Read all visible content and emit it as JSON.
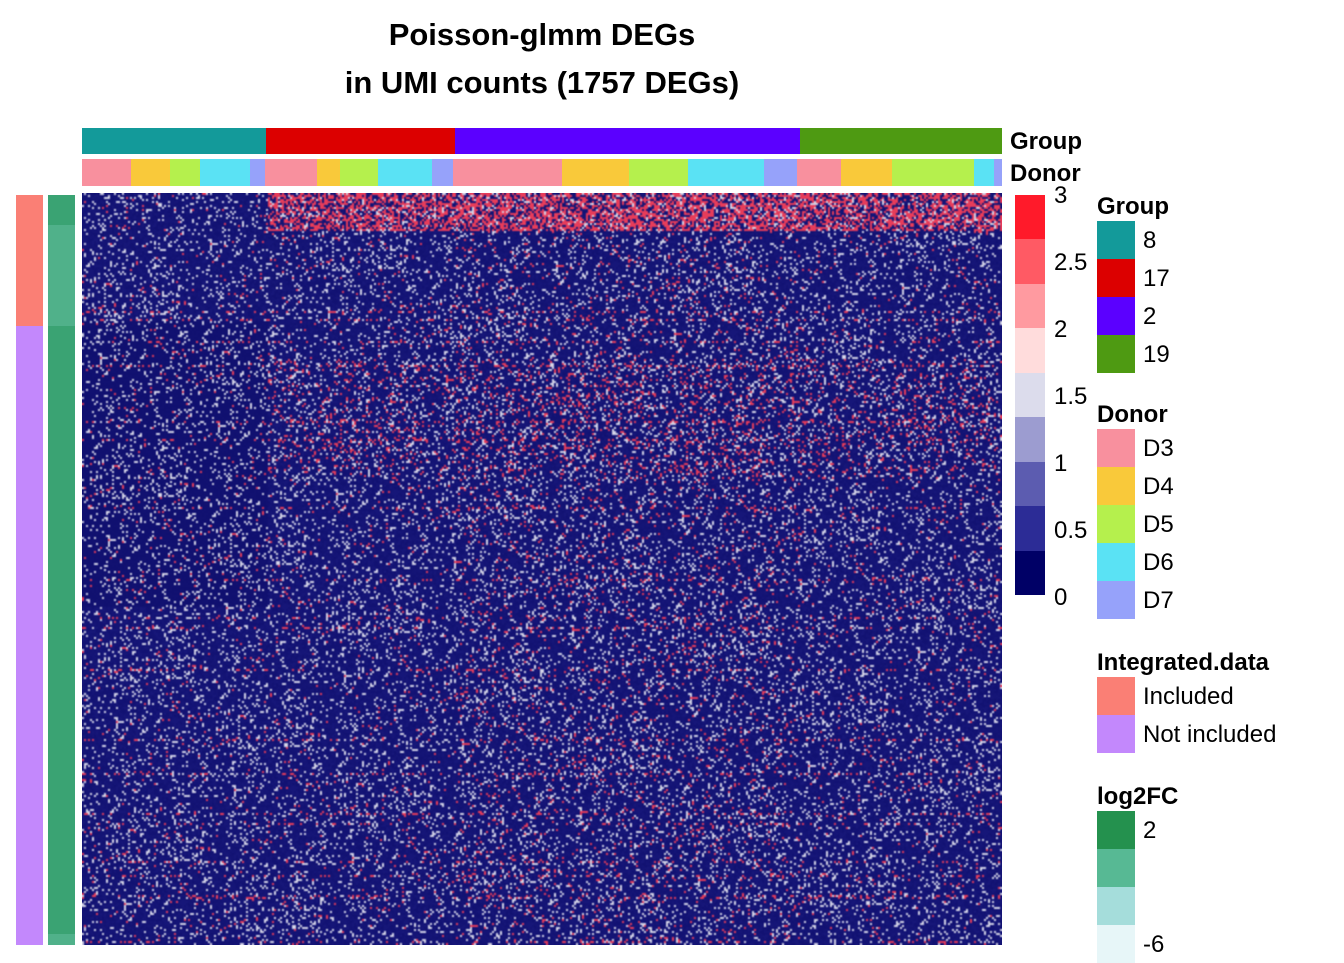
{
  "chart_data": {
    "type": "heatmap",
    "title": "Poisson-glmm DEGs",
    "subtitle": "in UMI counts (1757 DEGs)",
    "n_genes": 1757,
    "color_scale": {
      "range": [
        0,
        3
      ],
      "ticks": [
        "3",
        "2.5",
        "2",
        "1.5",
        "1",
        "0.5",
        "0"
      ],
      "colors_top_to_bottom": [
        "#ff1a2a",
        "#ff5a64",
        "#ff9aa0",
        "#ffdcdc",
        "#dcdcec",
        "#9c9cd0",
        "#5c5cb0",
        "#2c2c96",
        "#000066"
      ]
    },
    "column_annotations": {
      "group": {
        "name": "Group",
        "segments": [
          {
            "label": "8",
            "fraction": 0.2
          },
          {
            "label": "17",
            "fraction": 0.205
          },
          {
            "label": "2",
            "fraction": 0.375
          },
          {
            "label": "19",
            "fraction": 0.22
          }
        ]
      },
      "donor": {
        "name": "Donor",
        "segments": [
          {
            "label": "D3",
            "fraction": 0.053
          },
          {
            "label": "D4",
            "fraction": 0.043
          },
          {
            "label": "D5",
            "fraction": 0.033
          },
          {
            "label": "D6",
            "fraction": 0.054
          },
          {
            "label": "D7",
            "fraction": 0.017
          },
          {
            "label": "D3",
            "fraction": 0.056
          },
          {
            "label": "D4",
            "fraction": 0.025
          },
          {
            "label": "D5",
            "fraction": 0.042
          },
          {
            "label": "D6",
            "fraction": 0.059
          },
          {
            "label": "D7",
            "fraction": 0.023
          },
          {
            "label": "D3",
            "fraction": 0.118
          },
          {
            "label": "D4",
            "fraction": 0.073
          },
          {
            "label": "D5",
            "fraction": 0.065
          },
          {
            "label": "D6",
            "fraction": 0.083
          },
          {
            "label": "D7",
            "fraction": 0.036
          },
          {
            "label": "D3",
            "fraction": 0.048
          },
          {
            "label": "D4",
            "fraction": 0.055
          },
          {
            "label": "D5",
            "fraction": 0.089
          },
          {
            "label": "D6",
            "fraction": 0.022
          },
          {
            "label": "D7",
            "fraction": 0.009
          }
        ]
      }
    },
    "row_annotations": {
      "integrated_data": {
        "segments": [
          {
            "label": "Included",
            "fraction": 0.175
          },
          {
            "label": "Not included",
            "fraction": 0.825
          }
        ]
      },
      "log2fc_blocks": [
        {
          "value": 2,
          "fraction": 0.04
        },
        {
          "value": 1,
          "fraction": 0.135
        },
        {
          "value": 2,
          "fraction": 0.81
        },
        {
          "value": 1,
          "fraction": 0.015
        }
      ]
    }
  },
  "legends": {
    "group": {
      "title": "Group",
      "items": [
        {
          "label": "8",
          "color": "#139a9a"
        },
        {
          "label": "17",
          "color": "#dc0000"
        },
        {
          "label": "2",
          "color": "#5b00ff"
        },
        {
          "label": "19",
          "color": "#4e9a12"
        }
      ]
    },
    "donor": {
      "title": "Donor",
      "items": [
        {
          "label": "D3",
          "color": "#f8909e"
        },
        {
          "label": "D4",
          "color": "#f9c93a"
        },
        {
          "label": "D5",
          "color": "#b5f04d"
        },
        {
          "label": "D6",
          "color": "#5ae2f4"
        },
        {
          "label": "D7",
          "color": "#96a2fa"
        }
      ]
    },
    "integrated": {
      "title": "Integrated.data",
      "items": [
        {
          "label": "Included",
          "color": "#fa7f75"
        },
        {
          "label": "Not included",
          "color": "#c388fc"
        }
      ]
    },
    "log2fc": {
      "title": "log2FC",
      "items": [
        {
          "label": "2",
          "color": "#24914e"
        },
        {
          "label": "",
          "color": "#57b994"
        },
        {
          "label": "",
          "color": "#a5dddb"
        },
        {
          "label": "-6",
          "color": "#e7f6f8"
        }
      ]
    }
  }
}
